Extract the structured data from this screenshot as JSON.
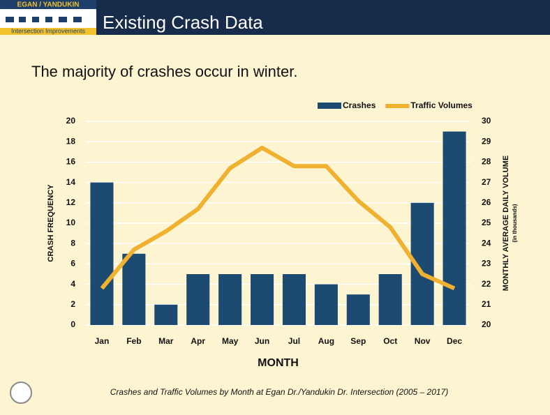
{
  "header": {
    "logo_top": "EGAN / YANDUKIN",
    "logo_bottom": "Intersection Improvements",
    "title": "Existing Crash Data"
  },
  "subtitle": "The majority of crashes occur in winter.",
  "caption": "Crashes and Traffic Volumes by Month at Egan Dr./Yandukin Dr. Intersection (2005 – 2017)",
  "chart_data": {
    "type": "bar",
    "categories": [
      "Jan",
      "Feb",
      "Mar",
      "Apr",
      "May",
      "Jun",
      "Jul",
      "Aug",
      "Sep",
      "Oct",
      "Nov",
      "Dec"
    ],
    "series": [
      {
        "name": "Crashes",
        "type": "bar",
        "color": "#1d4a70",
        "values": [
          14,
          7,
          2,
          5,
          5,
          5,
          5,
          4,
          3,
          5,
          12,
          19
        ]
      },
      {
        "name": "Traffic Volumes",
        "type": "line",
        "axis": "y2",
        "color": "#f0b030",
        "values": [
          21.8,
          23.7,
          24.6,
          25.7,
          27.7,
          28.7,
          27.8,
          27.8,
          26.1,
          24.8,
          22.5,
          21.8
        ]
      }
    ],
    "xlabel": "MONTH",
    "ylabel": "CRASH FREQUENCY",
    "y2label": "MONTHLY AVERAGE DAILY VOLUME",
    "y2label_note": "(in thousands)",
    "ylim": [
      0,
      20
    ],
    "yticks": [
      0,
      2,
      4,
      6,
      8,
      10,
      12,
      14,
      16,
      18,
      20
    ],
    "y2lim": [
      20,
      30
    ],
    "y2ticks": [
      20,
      21,
      22,
      23,
      24,
      25,
      26,
      27,
      28,
      29,
      30
    ],
    "grid": true,
    "legend": "top-right"
  }
}
